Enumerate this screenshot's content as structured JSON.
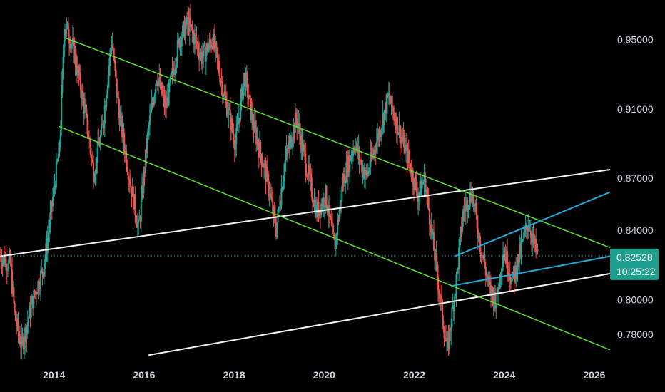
{
  "chart_data": {
    "type": "candlestick",
    "xlim": [
      2012.8,
      2026.35
    ],
    "ylim": [
      0.76645,
      0.97285
    ],
    "y_ticks": [
      {
        "value": 0.95,
        "label": "0.95000"
      },
      {
        "value": 0.91,
        "label": "0.91000"
      },
      {
        "value": 0.87,
        "label": "0.87000"
      },
      {
        "value": 0.84,
        "label": "0.84000"
      },
      {
        "value": 0.8,
        "label": "0.80000"
      },
      {
        "value": 0.78,
        "label": "0.78000"
      }
    ],
    "x_ticks": [
      {
        "value": 2014,
        "label": "2014"
      },
      {
        "value": 2016,
        "label": "2016"
      },
      {
        "value": 2018,
        "label": "2018"
      },
      {
        "value": 2020,
        "label": "2020"
      },
      {
        "value": 2022,
        "label": "2022"
      },
      {
        "value": 2024,
        "label": "2024"
      },
      {
        "value": 2026,
        "label": "2026"
      }
    ],
    "current_price": {
      "value": 0.82528,
      "label": "0.82528",
      "countdown": "10:25:22"
    },
    "colors": {
      "up": "#26a69a",
      "down": "#ef5350",
      "green_channel": "#5ee02b",
      "white_lines": "#f2f2f2",
      "blue_lines": "#25a8d9",
      "price_line": "#2c9c90",
      "price_tag": "#1f9f8e",
      "background": "#000000"
    },
    "price_path": [
      [
        2012.8,
        0.826
      ],
      [
        2013.05,
        0.82
      ],
      [
        2013.15,
        0.79
      ],
      [
        2013.3,
        0.773
      ],
      [
        2013.55,
        0.8
      ],
      [
        2013.8,
        0.82
      ],
      [
        2014.0,
        0.86
      ],
      [
        2014.15,
        0.89
      ],
      [
        2014.25,
        0.96
      ],
      [
        2014.45,
        0.945
      ],
      [
        2014.7,
        0.91
      ],
      [
        2014.9,
        0.873
      ],
      [
        2015.1,
        0.9
      ],
      [
        2015.3,
        0.95
      ],
      [
        2015.45,
        0.91
      ],
      [
        2015.7,
        0.87
      ],
      [
        2015.9,
        0.84
      ],
      [
        2016.1,
        0.895
      ],
      [
        2016.3,
        0.93
      ],
      [
        2016.5,
        0.91
      ],
      [
        2016.8,
        0.95
      ],
      [
        2017.0,
        0.96
      ],
      [
        2017.3,
        0.94
      ],
      [
        2017.55,
        0.95
      ],
      [
        2017.8,
        0.918
      ],
      [
        2018.05,
        0.89
      ],
      [
        2018.25,
        0.93
      ],
      [
        2018.45,
        0.9
      ],
      [
        2018.75,
        0.87
      ],
      [
        2018.95,
        0.84
      ],
      [
        2019.15,
        0.88
      ],
      [
        2019.4,
        0.905
      ],
      [
        2019.6,
        0.88
      ],
      [
        2019.85,
        0.85
      ],
      [
        2020.05,
        0.86
      ],
      [
        2020.25,
        0.83
      ],
      [
        2020.45,
        0.87
      ],
      [
        2020.7,
        0.89
      ],
      [
        2020.95,
        0.87
      ],
      [
        2021.2,
        0.893
      ],
      [
        2021.45,
        0.917
      ],
      [
        2021.65,
        0.9
      ],
      [
        2021.9,
        0.88
      ],
      [
        2022.1,
        0.86
      ],
      [
        2022.25,
        0.87
      ],
      [
        2022.45,
        0.83
      ],
      [
        2022.6,
        0.8
      ],
      [
        2022.75,
        0.77
      ],
      [
        2022.95,
        0.81
      ],
      [
        2023.1,
        0.85
      ],
      [
        2023.3,
        0.862
      ],
      [
        2023.5,
        0.83
      ],
      [
        2023.7,
        0.805
      ],
      [
        2023.85,
        0.8
      ],
      [
        2024.0,
        0.83
      ],
      [
        2024.2,
        0.81
      ],
      [
        2024.4,
        0.83
      ],
      [
        2024.55,
        0.845
      ],
      [
        2024.75,
        0.825
      ]
    ],
    "trendlines": {
      "green_channel": [
        {
          "x1": 2014.25,
          "y1": 0.951,
          "x2": 2026.35,
          "y2": 0.83
        },
        {
          "x1": 2014.1,
          "y1": 0.9,
          "x2": 2026.35,
          "y2": 0.771
        }
      ],
      "white_lines": [
        {
          "x1": 2012.8,
          "y1": 0.825,
          "x2": 2026.35,
          "y2": 0.875
        },
        {
          "x1": 2016.1,
          "y1": 0.768,
          "x2": 2026.35,
          "y2": 0.815
        }
      ],
      "blue_wedge": [
        {
          "x1": 2022.9,
          "y1": 0.825,
          "x2": 2026.35,
          "y2": 0.862
        },
        {
          "x1": 2022.85,
          "y1": 0.808,
          "x2": 2026.35,
          "y2": 0.825
        }
      ]
    }
  }
}
